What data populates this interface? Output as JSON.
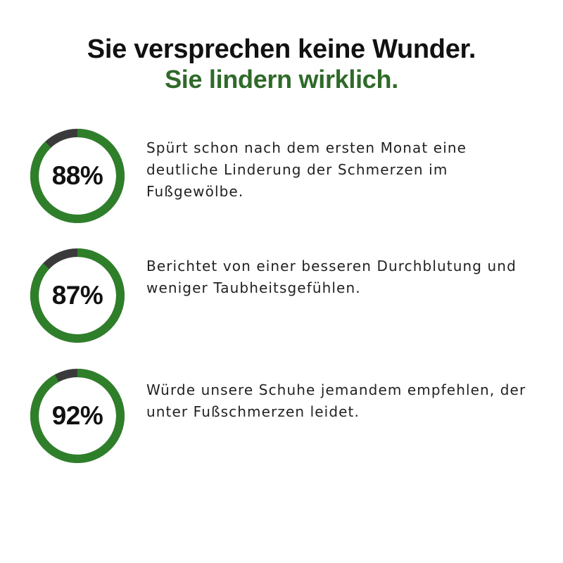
{
  "headline": {
    "line1": "Sie versprechen keine Wunder.",
    "line2": "Sie lindern wirklich."
  },
  "colors": {
    "accent_green": "#2f7f2a",
    "headline_green": "#2f6a29",
    "track_dark": "#3a3a3a",
    "text": "#222222"
  },
  "stats": [
    {
      "value_label": "88%",
      "fraction": 0.88,
      "text": "Spürt schon nach dem ersten Monat eine deutliche Linderung der Schmerzen im Fußgewölbe."
    },
    {
      "value_label": "87%",
      "fraction": 0.87,
      "text": "Berichtet von einer besseren Durchblutung und weniger Taubheitsgefühlen."
    },
    {
      "value_label": "92%",
      "fraction": 0.92,
      "text": "Würde unsere Schuhe jemandem empfehlen, der unter Fußschmerzen leidet."
    }
  ]
}
